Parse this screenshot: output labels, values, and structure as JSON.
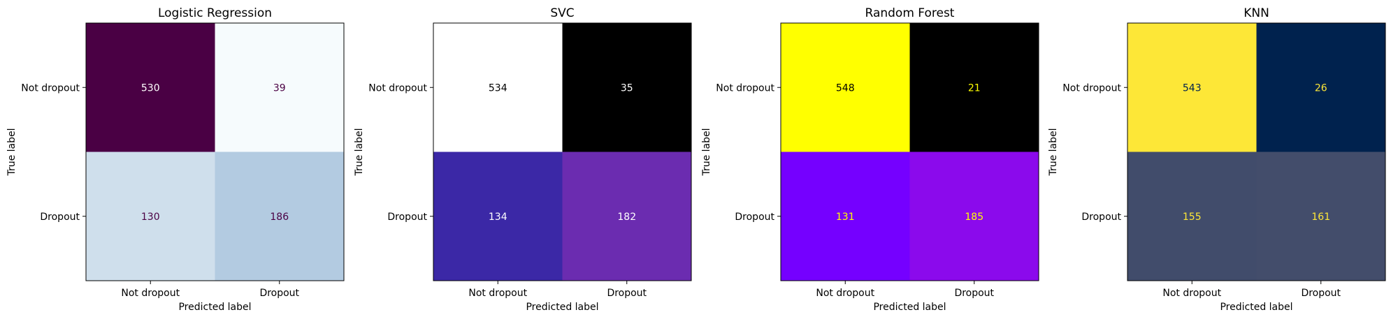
{
  "chart_data": [
    {
      "type": "heatmap",
      "title": "Logistic Regression",
      "xlabel": "Predicted label",
      "ylabel": "True label",
      "x_categories": [
        "Not dropout",
        "Dropout"
      ],
      "y_categories": [
        "Not dropout",
        "Dropout"
      ],
      "values": [
        [
          530,
          39
        ],
        [
          130,
          186
        ]
      ],
      "cell_colors": [
        [
          "#4a0044",
          "#f6fbfd"
        ],
        [
          "#cfdfec",
          "#b3cbe1"
        ]
      ],
      "text_colors": [
        [
          "#ffffff",
          "#4a0044"
        ],
        [
          "#4a0044",
          "#4a0044"
        ]
      ],
      "colormap": "BuPu"
    },
    {
      "type": "heatmap",
      "title": "SVC",
      "xlabel": "Predicted label",
      "ylabel": "True label",
      "x_categories": [
        "Not dropout",
        "Dropout"
      ],
      "y_categories": [
        "Not dropout",
        "Dropout"
      ],
      "values": [
        [
          534,
          35
        ],
        [
          134,
          182
        ]
      ],
      "cell_colors": [
        [
          "#ffffff",
          "#000000"
        ],
        [
          "#3b28a6",
          "#6b2cb0"
        ]
      ],
      "text_colors": [
        [
          "#000000",
          "#ffffff"
        ],
        [
          "#ffffff",
          "#ffffff"
        ]
      ],
      "colormap": "CMRmap_r"
    },
    {
      "type": "heatmap",
      "title": "Random Forest",
      "xlabel": "Predicted label",
      "ylabel": "True label",
      "x_categories": [
        "Not dropout",
        "Dropout"
      ],
      "y_categories": [
        "Not dropout",
        "Dropout"
      ],
      "values": [
        [
          548,
          21
        ],
        [
          131,
          185
        ]
      ],
      "cell_colors": [
        [
          "#ffff00",
          "#000000"
        ],
        [
          "#7500ff",
          "#8b0aec"
        ]
      ],
      "text_colors": [
        [
          "#000000",
          "#ffff00"
        ],
        [
          "#ffff00",
          "#ffff00"
        ]
      ],
      "colormap": "gnuplot2"
    },
    {
      "type": "heatmap",
      "title": "KNN",
      "xlabel": "Predicted label",
      "ylabel": "True label",
      "x_categories": [
        "Not dropout",
        "Dropout"
      ],
      "y_categories": [
        "Not dropout",
        "Dropout"
      ],
      "values": [
        [
          543,
          26
        ],
        [
          155,
          161
        ]
      ],
      "cell_colors": [
        [
          "#fde737",
          "#00224e"
        ],
        [
          "#414c6b",
          "#434d6b"
        ]
      ],
      "text_colors": [
        [
          "#00224e",
          "#fde737"
        ],
        [
          "#fde737",
          "#fde737"
        ]
      ],
      "colormap": "cividis"
    }
  ]
}
